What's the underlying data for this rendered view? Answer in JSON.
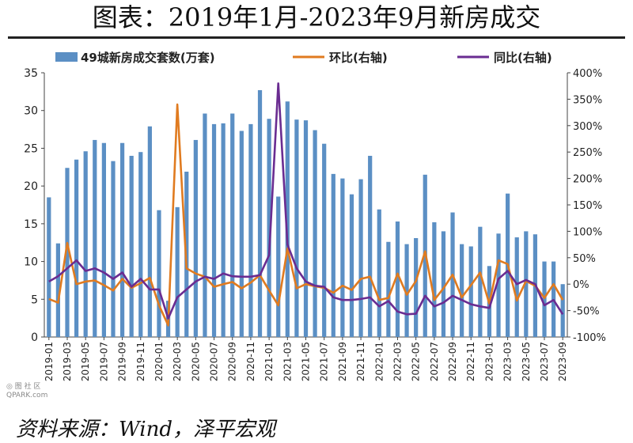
{
  "title": "图表：2019年1月-2023年9月新房成交",
  "source": "资料来源：Wind，泽平宏观",
  "watermark": {
    "line1": "◎ 图 社 区",
    "line2": "QPARK.com"
  },
  "colors": {
    "bar": "#5b8fc4",
    "mom": "#e07b20",
    "yoy": "#6a2c91",
    "axis": "#444444",
    "text": "#222222"
  },
  "chart_data": {
    "type": "bar+line",
    "x": [
      "2019-01",
      "2019-02",
      "2019-03",
      "2019-04",
      "2019-05",
      "2019-06",
      "2019-07",
      "2019-08",
      "2019-09",
      "2019-10",
      "2019-11",
      "2019-12",
      "2020-01",
      "2020-02",
      "2020-03",
      "2020-04",
      "2020-05",
      "2020-06",
      "2020-07",
      "2020-08",
      "2020-09",
      "2020-10",
      "2020-11",
      "2020-12",
      "2021-01",
      "2021-02",
      "2021-03",
      "2021-04",
      "2021-05",
      "2021-06",
      "2021-07",
      "2021-08",
      "2021-09",
      "2021-10",
      "2021-11",
      "2021-12",
      "2022-01",
      "2022-02",
      "2022-03",
      "2022-04",
      "2022-05",
      "2022-06",
      "2022-07",
      "2022-08",
      "2022-09",
      "2022-10",
      "2022-11",
      "2022-12",
      "2023-01",
      "2023-02",
      "2023-03",
      "2023-04",
      "2023-05",
      "2023-06",
      "2023-07",
      "2023-08",
      "2023-09"
    ],
    "tick_labels": [
      "2019-01",
      "2019-03",
      "2019-05",
      "2019-07",
      "2019-09",
      "2019-11",
      "2020-01",
      "2020-03",
      "2020-05",
      "2020-07",
      "2020-09",
      "2020-11",
      "2021-01",
      "2021-03",
      "2021-05",
      "2021-07",
      "2021-09",
      "2021-11",
      "2022-01",
      "2022-03",
      "2022-05",
      "2022-07",
      "2022-09",
      "2022-11",
      "2023-01",
      "2023-03",
      "2023-05",
      "2023-07",
      "2023-09"
    ],
    "legend": [
      "49城新房成交套数(万套)",
      "环比(右轴)",
      "同比(右轴)"
    ],
    "legend_position": "top",
    "y_left": {
      "min": 0,
      "max": 35,
      "ticks": [
        0,
        5,
        10,
        15,
        20,
        25,
        30,
        35
      ]
    },
    "y_right": {
      "min": -100,
      "max": 400,
      "ticks": [
        "-100%",
        "-50%",
        "0%",
        "50%",
        "100%",
        "150%",
        "200%",
        "250%",
        "300%",
        "350%",
        "400%"
      ]
    },
    "series": [
      {
        "name": "49城新房成交套数(万套)",
        "type": "bar",
        "axis": "left",
        "values": [
          18.5,
          12.4,
          22.4,
          23.5,
          24.6,
          26.1,
          25.7,
          23.3,
          25.7,
          24.0,
          24.5,
          27.9,
          16.8,
          4.8,
          17.2,
          21.9,
          26.1,
          29.6,
          28.2,
          28.3,
          29.6,
          27.3,
          28.2,
          32.7,
          28.9,
          18.6,
          31.2,
          28.8,
          28.7,
          27.4,
          25.6,
          21.6,
          21.0,
          18.9,
          20.9,
          24.0,
          16.9,
          12.6,
          15.3,
          12.3,
          13.1,
          21.5,
          15.2,
          14.0,
          16.5,
          12.3,
          12.0,
          14.6,
          9.4,
          13.7,
          19.0,
          13.2,
          14.0,
          13.6,
          10.0,
          10.0,
          7.0
        ]
      },
      {
        "name": "环比(右轴)",
        "type": "line",
        "axis": "right",
        "values": [
          -28,
          -35,
          78,
          0,
          5,
          7,
          -2,
          -12,
          10,
          -7,
          2,
          12,
          -40,
          -78,
          340,
          30,
          20,
          14,
          -5,
          0,
          4,
          -8,
          3,
          17,
          -12,
          -40,
          68,
          -8,
          0,
          -4,
          -7,
          -16,
          -3,
          -11,
          10,
          14,
          -30,
          -26,
          20,
          -20,
          6,
          62,
          -30,
          -8,
          18,
          -25,
          -2,
          22,
          -37,
          45,
          38,
          -31,
          6,
          -3,
          -26,
          0,
          -30
        ]
      },
      {
        "name": "同比(右轴)",
        "type": "line",
        "axis": "right",
        "values": [
          5,
          15,
          30,
          45,
          25,
          30,
          22,
          10,
          22,
          -5,
          10,
          -10,
          -10,
          -65,
          -25,
          -10,
          5,
          14,
          10,
          20,
          15,
          14,
          14,
          17,
          55,
          380,
          75,
          30,
          5,
          -3,
          -5,
          -25,
          -30,
          -30,
          -28,
          -25,
          -42,
          -32,
          -52,
          -57,
          -56,
          -22,
          -42,
          -35,
          -22,
          -30,
          -38,
          -42,
          -45,
          10,
          25,
          0,
          8,
          0,
          -40,
          -30,
          -57
        ]
      }
    ]
  }
}
